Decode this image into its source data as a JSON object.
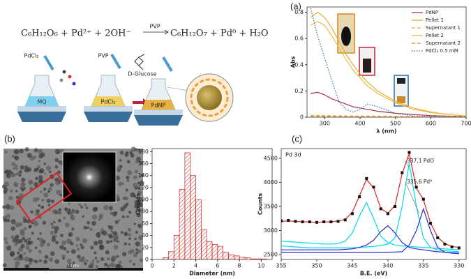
{
  "panel_labels": [
    "(a)",
    "(b)",
    "(c)"
  ],
  "scheme": {
    "equation_left": "C₆H₁₂O₆ + Pd²⁺ + 2OH⁻",
    "arrow_label": "PVP",
    "equation_right": "C₆H₁₂O₇ + Pd⁰ + H₂O",
    "labels": [
      "PdCl₂",
      "MQ",
      "PVP",
      "PdCl₂",
      "D-Glucose",
      "PdNP"
    ]
  },
  "tem": {
    "scale_bar": "10 nm"
  },
  "chart_data": [
    {
      "type": "line",
      "x_label": "λ (nm)",
      "y_label": "Abs",
      "x": [
        260,
        280,
        300,
        320,
        340,
        360,
        380,
        400,
        420,
        450,
        500,
        550,
        600,
        650,
        700
      ],
      "xlim": [
        250,
        700
      ],
      "xticks": [
        300,
        400,
        500,
        600,
        700
      ],
      "ylim": [
        0,
        0.84
      ],
      "yticks": [
        0,
        0.2,
        0.4,
        0.6,
        0.8
      ],
      "legend": "upper right",
      "series": [
        {
          "name": "PdNP",
          "color": "#a83050",
          "dash": "solid",
          "values": [
            0.18,
            0.19,
            0.17,
            0.14,
            0.12,
            0.1,
            0.08,
            0.07,
            0.06,
            0.045,
            0.03,
            0.02,
            0.012,
            0.008,
            0.005
          ]
        },
        {
          "name": "Pellet 1",
          "color": "#f0a830",
          "dash": "solid",
          "values": [
            0.76,
            0.8,
            0.76,
            0.68,
            0.58,
            0.48,
            0.4,
            0.33,
            0.27,
            0.2,
            0.12,
            0.07,
            0.04,
            0.02,
            0.01
          ]
        },
        {
          "name": "Supernatant 1",
          "color": "#f0a830",
          "dash": "dashed",
          "values": [
            0.015,
            0.013,
            0.012,
            0.011,
            0.01,
            0.01,
            0.009,
            0.009,
            0.008,
            0.008,
            0.007,
            0.006,
            0.005,
            0.005,
            0.005
          ]
        },
        {
          "name": "Pellet 2",
          "color": "#e8c040",
          "dash": "solid",
          "values": [
            0.7,
            0.73,
            0.7,
            0.62,
            0.53,
            0.44,
            0.36,
            0.3,
            0.24,
            0.18,
            0.11,
            0.06,
            0.035,
            0.02,
            0.01
          ]
        },
        {
          "name": "Supernatant 2",
          "color": "#e09020",
          "dash": "dashed",
          "values": [
            0.008,
            0.007,
            0.006,
            0.006,
            0.005,
            0.005,
            0.005,
            0.004,
            0.004,
            0.004,
            0.003,
            0.003,
            0.003,
            0.002,
            0.002
          ]
        },
        {
          "name": "PdCl₂ 0.5 mM",
          "color": "#2a6fa8",
          "dash": "dotted",
          "values": [
            0.83,
            0.62,
            0.45,
            0.28,
            0.12,
            0.06,
            0.04,
            0.06,
            0.1,
            0.08,
            0.03,
            0.01,
            0.005,
            0,
            0
          ]
        }
      ]
    },
    {
      "type": "histogram",
      "x_label": "Diameter (nm)",
      "y_label": "Counts",
      "color": "#cc2222",
      "bins": [
        1,
        1.5,
        2,
        2.5,
        3,
        3.5,
        4,
        4.5,
        5,
        5.5,
        6,
        6.5,
        7,
        7.5,
        8,
        8.5,
        9,
        9.5,
        10,
        10.5
      ],
      "values": [
        3,
        13,
        40,
        117,
        178,
        140,
        100,
        50,
        30,
        25,
        22,
        12,
        8,
        6,
        4,
        3,
        1,
        1,
        1
      ],
      "xlim": [
        0,
        11
      ],
      "xticks": [
        0,
        2,
        4,
        6,
        8,
        10
      ],
      "ylim": [
        0,
        185
      ],
      "yticks": [
        0,
        20,
        40,
        60,
        80,
        100,
        120,
        140,
        160,
        180
      ]
    },
    {
      "type": "line",
      "title": "Pd 3d",
      "x_label": "B.E. (eV)",
      "y_label": "Counts",
      "annotations": [
        "337,1 PdO",
        "335,6 Pd⁰"
      ],
      "x": [
        355,
        354,
        353,
        352,
        351,
        350,
        349,
        348,
        347,
        346,
        345,
        344,
        343,
        342,
        341,
        340,
        339,
        338,
        337,
        336,
        335,
        334,
        333,
        332,
        331,
        330
      ],
      "xlim": [
        355,
        329
      ],
      "xticks": [
        355,
        350,
        345,
        340,
        335,
        330
      ],
      "ylim": [
        2400,
        4700
      ],
      "yticks": [
        2500,
        3000,
        3500,
        4000,
        4500
      ],
      "series": [
        {
          "color": "#00d8e8",
          "dash": "solid",
          "values": [
            2780,
            2770,
            2760,
            2750,
            2740,
            2730,
            2720,
            2720,
            2730,
            2780,
            2950,
            3300,
            3580,
            3250,
            2880,
            2750,
            2700,
            2680,
            2670,
            2660,
            2650,
            2640,
            2630,
            2620,
            2610,
            2600
          ]
        },
        {
          "color": "#00d8e8",
          "dash": "solid",
          "values": [
            2680,
            2670,
            2660,
            2650,
            2640,
            2640,
            2640,
            2640,
            2640,
            2640,
            2640,
            2650,
            2660,
            2670,
            2690,
            2720,
            2850,
            3500,
            4400,
            3500,
            2850,
            2650,
            2600,
            2580,
            2570,
            2560
          ]
        },
        {
          "color": "#2a2ad0",
          "dash": "solid",
          "values": [
            2600,
            2600,
            2600,
            2600,
            2600,
            2600,
            2600,
            2600,
            2600,
            2610,
            2620,
            2650,
            2700,
            2800,
            2980,
            3100,
            2950,
            2750,
            2650,
            2620,
            2600,
            2580,
            2560,
            2550,
            2540,
            2530
          ]
        },
        {
          "color": "#2a2ad0",
          "dash": "solid",
          "values": [
            2550,
            2550,
            2550,
            2550,
            2550,
            2550,
            2550,
            2550,
            2550,
            2550,
            2550,
            2550,
            2550,
            2550,
            2550,
            2550,
            2555,
            2560,
            2700,
            3000,
            3450,
            3000,
            2650,
            2550,
            2530,
            2520
          ]
        },
        {
          "color": "#e02020",
          "dash": "solid",
          "values": [
            3190,
            3200,
            3190,
            3180,
            3180,
            3170,
            3180,
            3180,
            3200,
            3230,
            3380,
            3720,
            4060,
            3880,
            3460,
            3360,
            3520,
            4180,
            4600,
            3880,
            3640,
            3160,
            2860,
            2730,
            2670,
            2650
          ]
        },
        {
          "color": "#111111",
          "dash": "points",
          "values": [
            3200,
            3210,
            3190,
            3180,
            3180,
            3170,
            3180,
            3180,
            3190,
            3220,
            3350,
            3700,
            4080,
            3900,
            3450,
            3350,
            3500,
            4200,
            4620,
            3900,
            3650,
            3150,
            2850,
            2720,
            2660,
            2640
          ]
        }
      ]
    }
  ]
}
